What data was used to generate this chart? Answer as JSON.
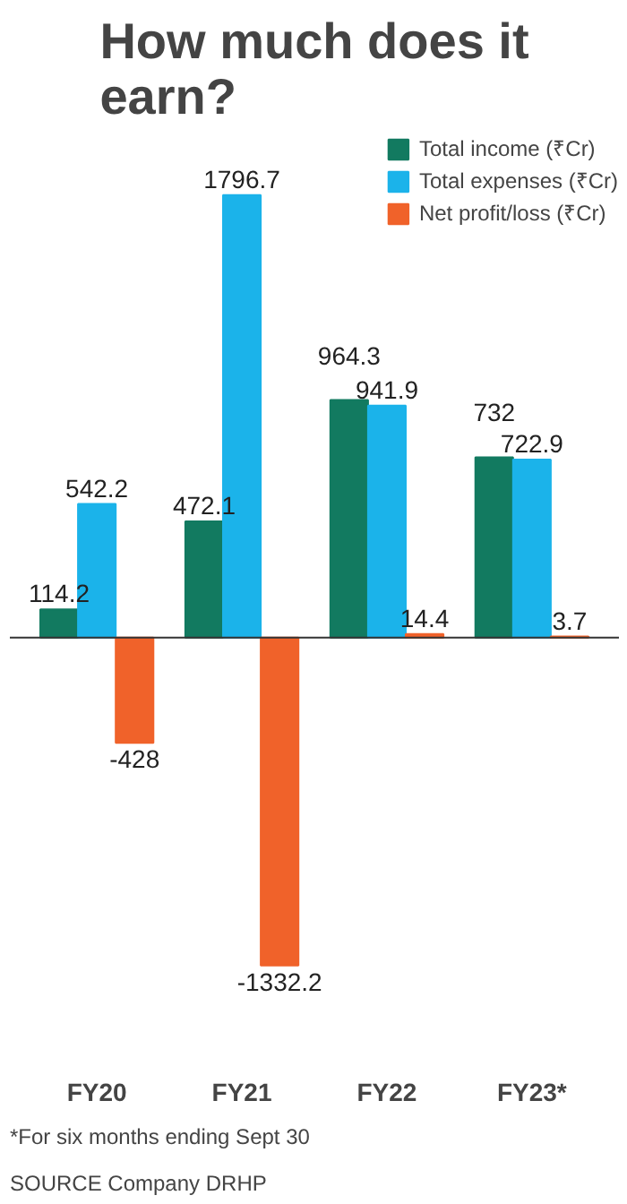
{
  "chart_data": {
    "type": "bar",
    "title": "How much does it earn?",
    "categories": [
      "FY20",
      "FY21",
      "FY22",
      "FY23*"
    ],
    "series": [
      {
        "name": "Total income (₹Cr)",
        "color": "#127a60",
        "values": [
          114.2,
          472.1,
          964.3,
          732
        ]
      },
      {
        "name": "Total expenses (₹Cr)",
        "color": "#1bb3ea",
        "values": [
          542.2,
          1796.7,
          941.9,
          722.9
        ]
      },
      {
        "name": "Net profit/loss (₹Cr)",
        "color": "#f0622a",
        "values": [
          -428,
          -1332.2,
          14.4,
          3.7
        ]
      }
    ],
    "data_labels": true,
    "legend": "top right",
    "grid": false,
    "annotations": [
      "SOURCE Company DRHP",
      "*For six months ending Sept 30"
    ]
  }
}
